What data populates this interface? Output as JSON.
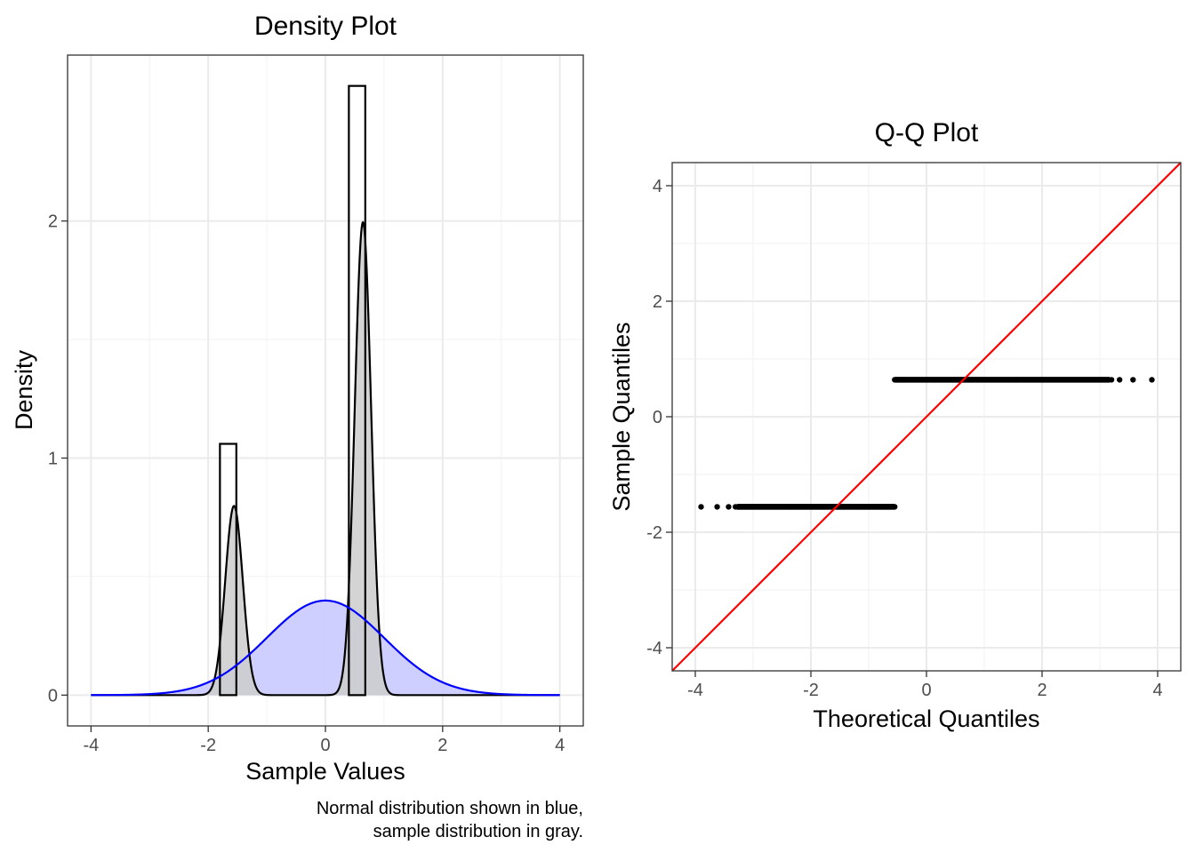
{
  "chart_data": [
    {
      "type": "histogram",
      "title": "Density Plot",
      "xlabel": "Sample Values",
      "ylabel": "Density",
      "caption_lines": [
        "Normal distribution shown in blue,",
        "sample distribution in gray."
      ],
      "xlim": [
        -4.4,
        4.4
      ],
      "ylim": [
        -0.13,
        2.7
      ],
      "x_ticks": [
        -4,
        -2,
        0,
        2,
        4
      ],
      "x_tick_labels": [
        "-4",
        "-2",
        "0",
        "2",
        "4"
      ],
      "y_ticks": [
        0,
        1,
        2
      ],
      "y_tick_labels": [
        "0",
        "1",
        "2"
      ],
      "grid": true,
      "histogram_bins": [
        {
          "x0": -1.8,
          "x1": -1.52,
          "density": 1.06
        },
        {
          "x0": 0.4,
          "x1": 0.68,
          "density": 2.57
        }
      ],
      "sample_density_components": [
        {
          "weight": 0.3,
          "mean": -1.56,
          "sd": 0.15
        },
        {
          "weight": 0.7,
          "mean": 0.64,
          "sd": 0.14
        }
      ],
      "normal_reference": {
        "mean": 0,
        "sd": 1
      },
      "density_range": [
        -4,
        4
      ],
      "colors": {
        "normal": "#0000ff",
        "normal_fill": "#ccccff",
        "sample_fill": "#cccccc",
        "outline": "#000000"
      }
    },
    {
      "type": "scatter",
      "title": "Q-Q Plot",
      "xlabel": "Theoretical Quantiles",
      "ylabel": "Sample Quantiles",
      "xlim": [
        -4.4,
        4.4
      ],
      "ylim": [
        -4.4,
        4.4
      ],
      "x_ticks": [
        -4,
        -2,
        0,
        2,
        4
      ],
      "x_tick_labels": [
        "-4",
        "-2",
        "0",
        "2",
        "4"
      ],
      "y_ticks": [
        -4,
        -2,
        0,
        2,
        4
      ],
      "y_tick_labels": [
        "-4",
        "-2",
        "0",
        "2",
        "4"
      ],
      "grid": true,
      "point_groups": [
        {
          "y": -1.56,
          "x_min": -3.9,
          "x_max": -0.55
        },
        {
          "y": 0.64,
          "x_min": -0.55,
          "x_max": 3.9
        }
      ],
      "reference_line": {
        "slope": 1,
        "intercept": 0
      },
      "colors": {
        "points": "#000000",
        "line": "#ff0000"
      }
    }
  ]
}
